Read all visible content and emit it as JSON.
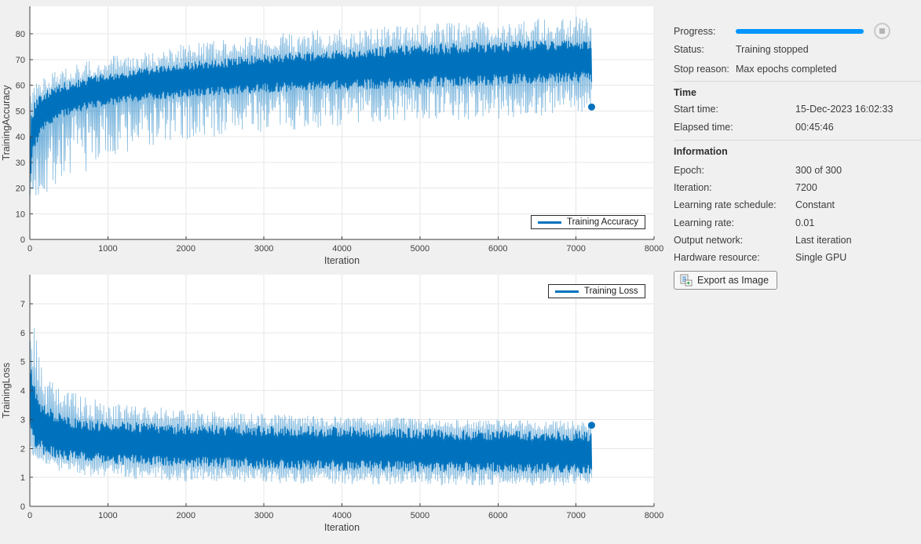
{
  "chart_data": [
    {
      "id": "training-accuracy",
      "type": "line",
      "legend": "Training Accuracy",
      "xlabel": "Iteration",
      "ylabel": "TrainingAccuracy",
      "line_color": "#0072bd",
      "grid": true,
      "xlim": [
        0,
        8000
      ],
      "ylim": [
        0,
        90.7
      ],
      "xticks": [
        0,
        1000,
        2000,
        3000,
        4000,
        5000,
        6000,
        7000,
        8000
      ],
      "yticks": [
        0,
        10,
        20,
        30,
        40,
        50,
        60,
        70,
        80
      ],
      "x_end": 7200,
      "final_value": 51.5,
      "envelope_x": [
        0,
        30,
        100,
        200,
        400,
        700,
        1000,
        1500,
        2000,
        3000,
        4000,
        5000,
        6000,
        7200
      ],
      "envelope_low": [
        5,
        8,
        12,
        16,
        21,
        26,
        30,
        35,
        38,
        42,
        44,
        46,
        47,
        48
      ],
      "envelope_high": [
        55,
        60,
        62,
        64,
        66,
        69,
        71,
        74,
        76,
        80,
        82,
        84,
        85,
        87
      ],
      "core_low": [
        15,
        30,
        38,
        43,
        47,
        50,
        52,
        54,
        55,
        57,
        58,
        59,
        60,
        61
      ],
      "core_high": [
        45,
        52,
        56,
        58,
        61,
        63,
        65,
        67,
        69,
        72,
        74,
        76,
        77,
        78
      ]
    },
    {
      "id": "training-loss",
      "type": "line",
      "legend": "Training Loss",
      "xlabel": "Iteration",
      "ylabel": "TrainingLoss",
      "line_color": "#0072bd",
      "grid": true,
      "xlim": [
        0,
        8000
      ],
      "ylim": [
        0,
        8
      ],
      "xticks": [
        0,
        1000,
        2000,
        3000,
        4000,
        5000,
        6000,
        7000,
        8000
      ],
      "yticks": [
        0,
        1,
        2,
        3,
        4,
        5,
        6,
        7
      ],
      "x_end": 7200,
      "final_value": 2.8,
      "envelope_x": [
        0,
        30,
        100,
        200,
        400,
        700,
        1000,
        1500,
        2000,
        3000,
        4000,
        5000,
        6000,
        7200
      ],
      "envelope_low": [
        2.0,
        1.8,
        1.55,
        1.4,
        1.2,
        1.05,
        1.0,
        0.9,
        0.85,
        0.8,
        0.76,
        0.73,
        0.71,
        0.7
      ],
      "envelope_high": [
        7.9,
        6.8,
        5.6,
        4.8,
        4.1,
        3.8,
        3.6,
        3.45,
        3.35,
        3.2,
        3.1,
        3.05,
        3.0,
        2.95
      ],
      "core_low": [
        2.3,
        2.1,
        1.9,
        1.75,
        1.6,
        1.5,
        1.45,
        1.4,
        1.35,
        1.28,
        1.22,
        1.18,
        1.15,
        1.12
      ],
      "core_high": [
        5.5,
        4.5,
        3.9,
        3.5,
        3.2,
        3.0,
        2.95,
        2.9,
        2.85,
        2.8,
        2.75,
        2.7,
        2.65,
        2.6
      ]
    }
  ],
  "panel": {
    "progress": {
      "label": "Progress:",
      "percent": 100,
      "bar_color": "#0095ff"
    },
    "status": {
      "label": "Status:",
      "value": "Training stopped"
    },
    "stop_reason": {
      "label": "Stop reason:",
      "value": "Max epochs completed"
    },
    "time": {
      "header": "Time",
      "rows": [
        {
          "label": "Start time:",
          "value": "15-Dec-2023 16:02:33"
        },
        {
          "label": "Elapsed time:",
          "value": "00:45:46"
        }
      ]
    },
    "information": {
      "header": "Information",
      "rows": [
        {
          "label": "Epoch:",
          "value": "300 of 300"
        },
        {
          "label": "Iteration:",
          "value": "7200"
        },
        {
          "label": "Learning rate schedule:",
          "value": "Constant"
        },
        {
          "label": "Learning rate:",
          "value": "0.01"
        },
        {
          "label": "Output network:",
          "value": "Last iteration"
        },
        {
          "label": "Hardware resource:",
          "value": "Single GPU"
        }
      ]
    },
    "export_button": {
      "label": "Export as Image"
    }
  }
}
